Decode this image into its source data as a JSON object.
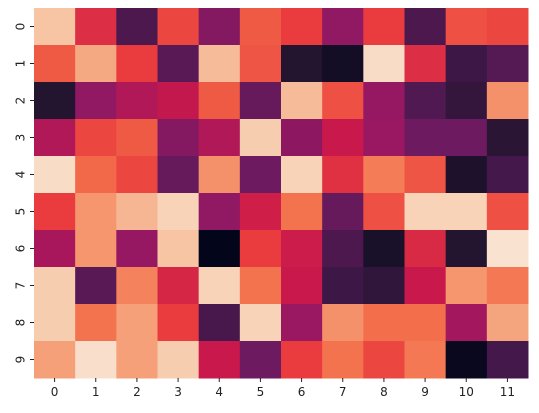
{
  "chart_data": {
    "type": "heatmap",
    "title": "",
    "xlabel": "",
    "ylabel": "",
    "x_labels": [
      "0",
      "1",
      "2",
      "3",
      "4",
      "5",
      "6",
      "7",
      "8",
      "9",
      "10",
      "11"
    ],
    "y_labels": [
      "0",
      "1",
      "2",
      "3",
      "4",
      "5",
      "6",
      "7",
      "8",
      "9"
    ],
    "value_range": [
      0,
      1
    ],
    "colorscale": "rocket",
    "grid": false,
    "legend": "none",
    "values": [
      [
        0.88,
        0.56,
        0.22,
        0.62,
        0.35,
        0.66,
        0.6,
        0.38,
        0.6,
        0.22,
        0.64,
        0.62
      ],
      [
        0.66,
        0.82,
        0.6,
        0.25,
        0.86,
        0.65,
        0.1,
        0.05,
        0.95,
        0.56,
        0.18,
        0.24
      ],
      [
        0.1,
        0.38,
        0.45,
        0.49,
        0.66,
        0.28,
        0.86,
        0.64,
        0.39,
        0.23,
        0.15,
        0.77
      ],
      [
        0.45,
        0.62,
        0.66,
        0.35,
        0.45,
        0.9,
        0.37,
        0.5,
        0.4,
        0.3,
        0.3,
        0.12
      ],
      [
        0.95,
        0.69,
        0.62,
        0.28,
        0.77,
        0.3,
        0.92,
        0.57,
        0.73,
        0.65,
        0.08,
        0.2
      ],
      [
        0.6,
        0.78,
        0.85,
        0.92,
        0.38,
        0.52,
        0.71,
        0.28,
        0.64,
        0.92,
        0.92,
        0.64
      ],
      [
        0.43,
        0.78,
        0.39,
        0.88,
        0.0,
        0.6,
        0.51,
        0.22,
        0.07,
        0.55,
        0.1,
        0.97
      ],
      [
        0.9,
        0.25,
        0.74,
        0.54,
        0.92,
        0.71,
        0.5,
        0.18,
        0.14,
        0.5,
        0.78,
        0.72
      ],
      [
        0.9,
        0.71,
        0.8,
        0.6,
        0.21,
        0.92,
        0.4,
        0.77,
        0.7,
        0.7,
        0.42,
        0.81
      ],
      [
        0.8,
        0.96,
        0.8,
        0.9,
        0.5,
        0.3,
        0.6,
        0.71,
        0.62,
        0.72,
        0.02,
        0.2
      ]
    ]
  }
}
